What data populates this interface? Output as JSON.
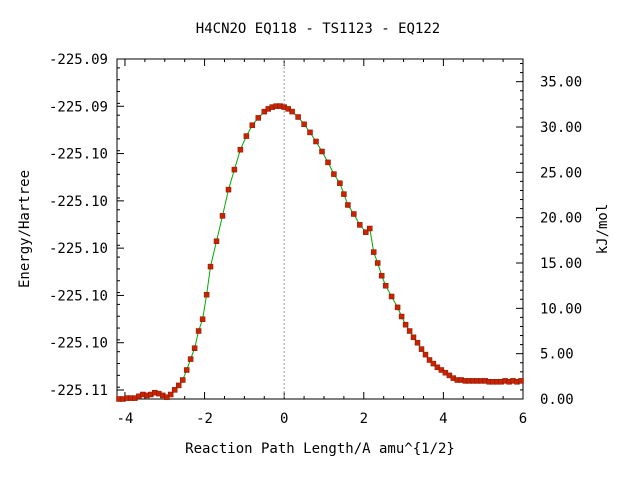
{
  "chart_data": {
    "type": "line",
    "title": "H4CN2O   EQ118 - TS1123 - EQ122",
    "xlabel": "Reaction Path Length/A amu^{1/2}",
    "ylabel": "Energy/Hartree",
    "y2label": "kJ/mol",
    "xlim": [
      -4.2,
      6.0
    ],
    "y2lim": [
      0.0,
      37.5
    ],
    "x_ticks": [
      "-4",
      "-2",
      "0",
      "2",
      "4",
      "6"
    ],
    "x_tick_values": [
      -4,
      -2,
      0,
      2,
      4,
      6
    ],
    "y_ticks": [
      "-225.11",
      "-225.10",
      "-225.10",
      "-225.10",
      "-225.10",
      "-225.10",
      "-225.09",
      "-225.09"
    ],
    "y2_ticks": [
      "0.00",
      "5.00",
      "10.00",
      "15.00",
      "20.00",
      "25.00",
      "30.00",
      "35.00"
    ],
    "y2_tick_values": [
      0,
      5,
      10,
      15,
      20,
      25,
      30,
      35
    ],
    "ts_marker_x": 0,
    "line_color": "#00aa00",
    "marker_color": "#cc2200",
    "series": [
      {
        "x": [
          -4.15,
          -4.05,
          -3.95,
          -3.85,
          -3.75,
          -3.65,
          -3.55,
          -3.45,
          -3.35,
          -3.25,
          -3.15,
          -3.05,
          -2.95,
          -2.85,
          -2.75,
          -2.65,
          -2.55,
          -2.45,
          -2.35,
          -2.25,
          -2.15,
          -2.05,
          -1.95,
          -1.85,
          -1.7,
          -1.55,
          -1.4,
          -1.25,
          -1.1,
          -0.95,
          -0.8,
          -0.65,
          -0.5,
          -0.4,
          -0.3,
          -0.2,
          -0.1,
          0.0,
          0.1,
          0.2,
          0.35,
          0.5,
          0.65,
          0.8,
          0.95,
          1.1,
          1.25,
          1.4,
          1.5,
          1.6,
          1.75,
          1.9,
          2.05,
          2.15,
          2.25,
          2.35,
          2.45,
          2.55,
          2.7,
          2.85,
          2.95,
          3.05,
          3.15,
          3.25,
          3.35,
          3.45,
          3.55,
          3.65,
          3.75,
          3.85,
          3.95,
          4.05,
          4.15,
          4.25,
          4.35,
          4.45,
          4.55,
          4.65,
          4.75,
          4.85,
          4.95,
          5.05,
          5.15,
          5.25,
          5.35,
          5.45,
          5.55,
          5.65,
          5.75,
          5.85,
          5.95
        ],
        "y2": [
          0.0,
          0.0,
          0.1,
          0.1,
          0.1,
          0.3,
          0.5,
          0.4,
          0.5,
          0.7,
          0.6,
          0.4,
          0.2,
          0.5,
          1.0,
          1.5,
          2.1,
          3.2,
          4.4,
          5.6,
          7.5,
          8.8,
          11.5,
          14.6,
          17.4,
          20.2,
          23.1,
          25.3,
          27.5,
          29.0,
          30.2,
          31.0,
          31.7,
          32.0,
          32.2,
          32.3,
          32.3,
          32.2,
          32.0,
          31.7,
          31.1,
          30.3,
          29.4,
          28.4,
          27.3,
          26.1,
          24.8,
          23.8,
          22.6,
          21.4,
          20.4,
          19.2,
          18.4,
          18.8,
          16.2,
          15.0,
          13.6,
          12.5,
          11.3,
          10.1,
          9.1,
          8.2,
          7.5,
          6.8,
          6.2,
          5.5,
          4.9,
          4.3,
          3.9,
          3.5,
          3.2,
          2.9,
          2.6,
          2.3,
          2.1,
          2.1,
          2.0,
          2.0,
          2.0,
          2.0,
          2.0,
          2.0,
          1.9,
          1.9,
          1.9,
          1.9,
          2.0,
          1.9,
          2.0,
          1.9,
          2.0
        ]
      }
    ]
  }
}
